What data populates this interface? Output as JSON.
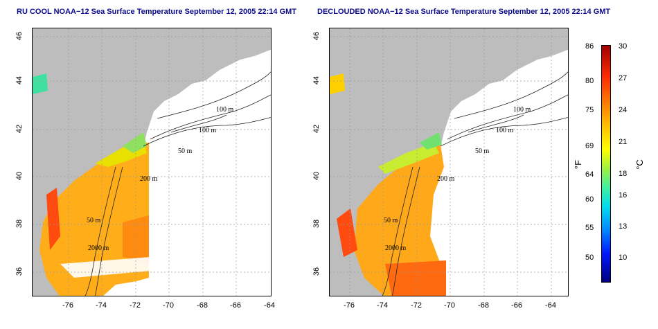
{
  "panels": [
    {
      "title": "RU COOL NOAA−12 Sea Surface Temperature September 12, 2005 22:14 GMT"
    },
    {
      "title": "DECLOUDED NOAA−12 Sea Surface Temperature September 12, 2005 22:14 GMT"
    }
  ],
  "axes": {
    "x_ticks": [
      "-76",
      "-74",
      "-72",
      "-70",
      "-68",
      "-66",
      "-64"
    ],
    "y_ticks": [
      "36",
      "38",
      "40",
      "42",
      "44",
      "46"
    ]
  },
  "contours": [
    "100 m",
    "100 m",
    "50 m",
    "200 m",
    "50 m",
    "2000 m"
  ],
  "colorbar": {
    "f_labels": [
      "86",
      "80",
      "75",
      "69",
      "64",
      "60",
      "55",
      "50"
    ],
    "c_labels": [
      "30",
      "27",
      "24",
      "21",
      "18",
      "16",
      "13",
      "10"
    ],
    "f_unit": "°F",
    "c_unit": "°C"
  }
}
